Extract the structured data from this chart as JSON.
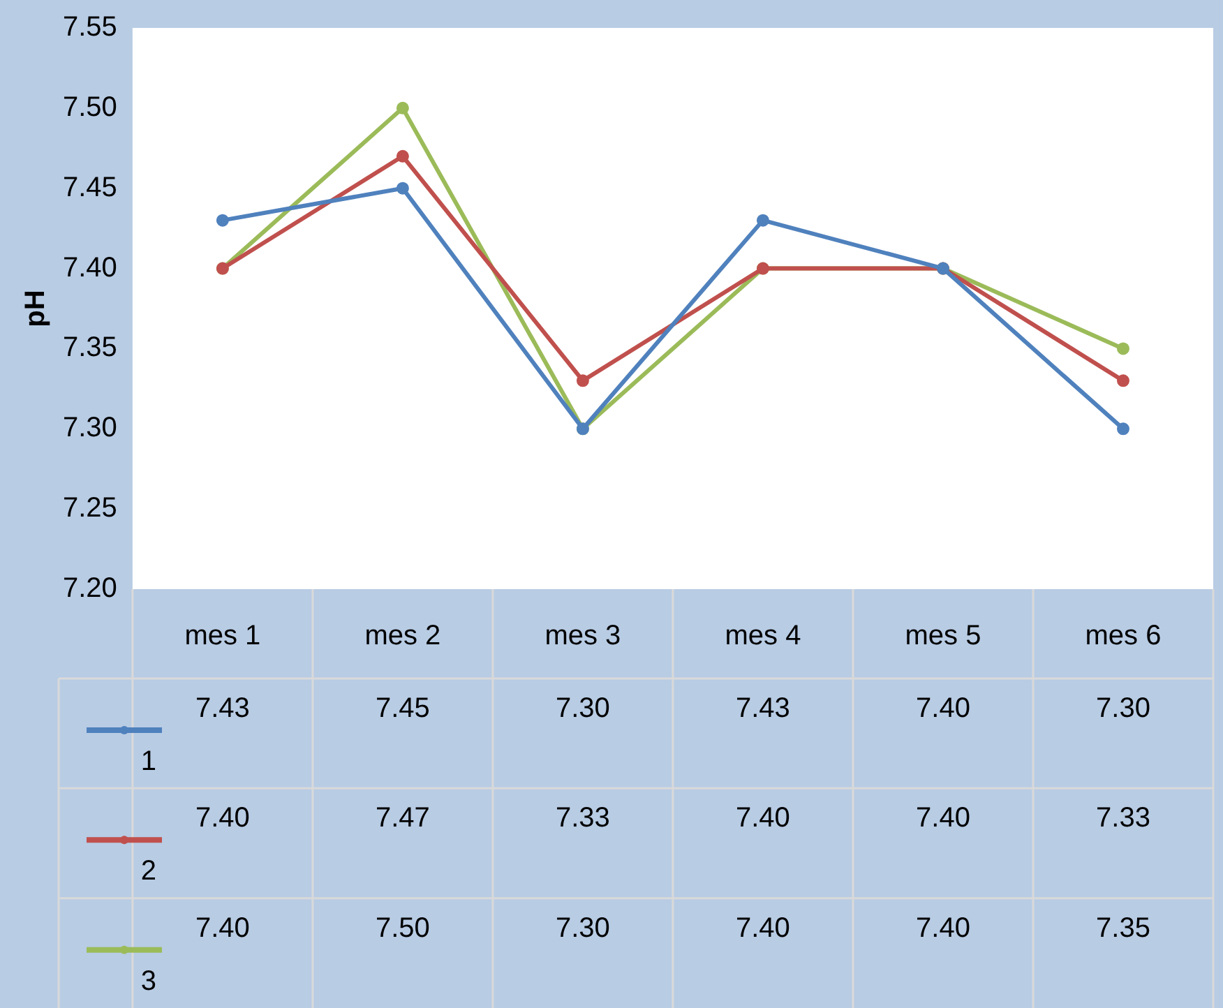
{
  "chart_data": {
    "type": "line",
    "ylabel": "pH",
    "categories": [
      "mes 1",
      "mes 2",
      "mes 3",
      "mes 4",
      "mes 5",
      "mes 6"
    ],
    "ylim": [
      7.2,
      7.55
    ],
    "yticks": [
      {
        "value": 7.2,
        "label": "7.20"
      },
      {
        "value": 7.25,
        "label": "7.25"
      },
      {
        "value": 7.3,
        "label": "7.30"
      },
      {
        "value": 7.35,
        "label": "7.35"
      },
      {
        "value": 7.4,
        "label": "7.40"
      },
      {
        "value": 7.45,
        "label": "7.45"
      },
      {
        "value": 7.5,
        "label": "7.50"
      },
      {
        "value": 7.55,
        "label": "7.55"
      }
    ],
    "grid": false,
    "legend": "bottom",
    "marker": "circle",
    "line_style": "solid",
    "series": [
      {
        "name": "1",
        "color": "#4f81bd",
        "values": [
          7.43,
          7.45,
          7.3,
          7.43,
          7.4,
          7.3
        ],
        "value_labels": [
          "7.43",
          "7.45",
          "7.30",
          "7.43",
          "7.40",
          "7.30"
        ]
      },
      {
        "name": "2",
        "color": "#c0504d",
        "values": [
          7.4,
          7.47,
          7.33,
          7.4,
          7.4,
          7.33
        ],
        "value_labels": [
          "7.40",
          "7.47",
          "7.33",
          "7.40",
          "7.40",
          "7.33"
        ]
      },
      {
        "name": "3",
        "color": "#9bbb59",
        "values": [
          7.4,
          7.5,
          7.3,
          7.4,
          7.4,
          7.35
        ],
        "value_labels": [
          "7.40",
          "7.50",
          "7.30",
          "7.40",
          "7.40",
          "7.35"
        ]
      }
    ]
  }
}
